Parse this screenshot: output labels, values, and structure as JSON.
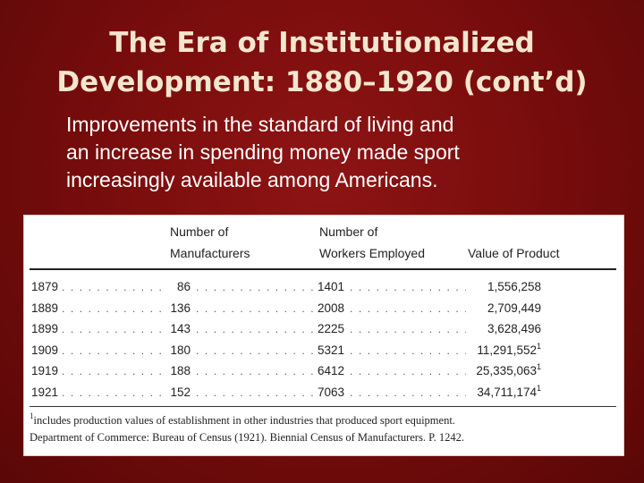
{
  "slide": {
    "title_line1": "The Era of Institutionalized",
    "title_line2": "Development: 1880–1920 (cont’d)",
    "body_line1": "Improvements in the standard of living and",
    "body_line2": "an increase in spending money made sport",
    "body_line3": "increasingly available among Americans."
  },
  "table": {
    "headers": {
      "manufacturers_1": "Number of",
      "manufacturers_2": "Manufacturers",
      "workers_1": "Number of",
      "workers_2": "Workers Employed",
      "value": "Value of Product"
    },
    "rows": [
      {
        "year": "1879",
        "manufacturers": "86",
        "workers": "1401",
        "value": "1,556,258",
        "note": ""
      },
      {
        "year": "1889",
        "manufacturers": "136",
        "workers": "2008",
        "value": "2,709,449",
        "note": ""
      },
      {
        "year": "1899",
        "manufacturers": "143",
        "workers": "2225",
        "value": "3,628,496",
        "note": ""
      },
      {
        "year": "1909",
        "manufacturers": "180",
        "workers": "5321",
        "value": "11,291,552",
        "note": "1"
      },
      {
        "year": "1919",
        "manufacturers": "188",
        "workers": "6412",
        "value": "25,335,063",
        "note": "1"
      },
      {
        "year": "1921",
        "manufacturers": "152",
        "workers": "7063",
        "value": "34,711,174",
        "note": "1"
      }
    ],
    "footnote_marker": "1",
    "footnote_text": "includes production values of establishment in other industries that produced sport equipment.",
    "source": "Department of Commerce: Bureau of Census (1921). Biennial Census of Manufacturers. P. 1242."
  }
}
